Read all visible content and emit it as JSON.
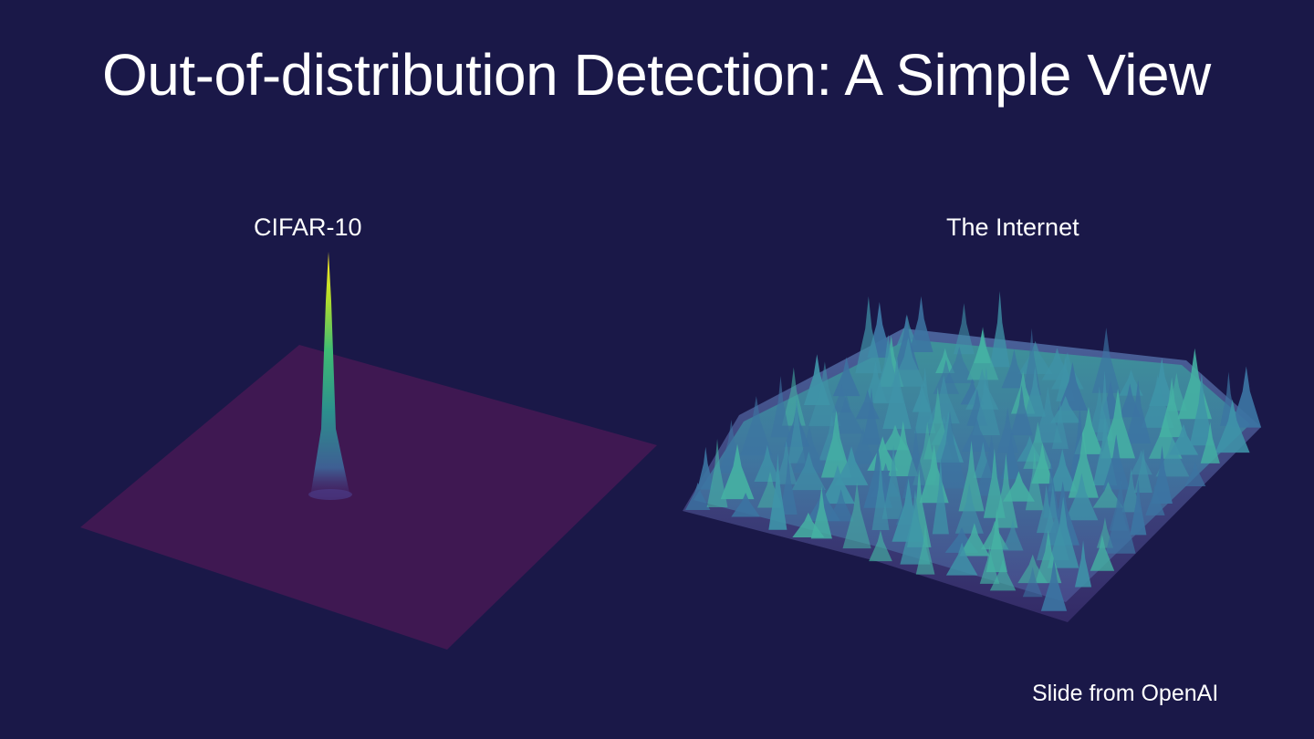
{
  "slide": {
    "title": "Out-of-distribution Detection: A Simple View",
    "credit": "Slide from OpenAI",
    "background_color": "#1a1848"
  },
  "panels": [
    {
      "label": "CIFAR-10",
      "surface": "single-sharp-peak",
      "plane_color": "#3f1852",
      "colormap": "viridis"
    },
    {
      "label": "The Internet",
      "surface": "rugged-multi-peak",
      "colormap": "viridis"
    }
  ]
}
